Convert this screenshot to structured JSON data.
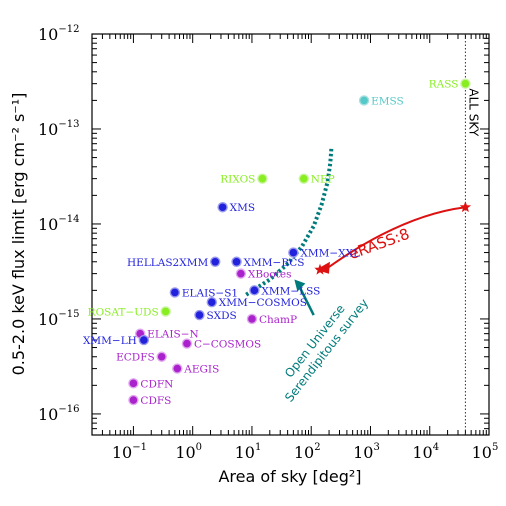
{
  "chart_data": {
    "type": "scatter",
    "xlabel": "Area of sky [deg²]",
    "ylabel": "0.5-2.0 keV flux limit [erg cm⁻² s⁻¹]",
    "x_scale": "log",
    "y_scale": "log",
    "xlim": [
      0.02,
      100000
    ],
    "ylim": [
      6e-17,
      1e-12
    ],
    "x_ticks": [
      {
        "base": "10",
        "exp": "−1"
      },
      {
        "base": "10",
        "exp": "0"
      },
      {
        "base": "10",
        "exp": "1"
      },
      {
        "base": "10",
        "exp": "2"
      },
      {
        "base": "10",
        "exp": "3"
      },
      {
        "base": "10",
        "exp": "4"
      },
      {
        "base": "10",
        "exp": "5"
      }
    ],
    "y_ticks": [
      {
        "base": "10",
        "exp": "−16"
      },
      {
        "base": "10",
        "exp": "−15"
      },
      {
        "base": "10",
        "exp": "−14"
      },
      {
        "base": "10",
        "exp": "−13"
      },
      {
        "base": "10",
        "exp": "−12"
      }
    ],
    "colors": {
      "blue": "#2222dd",
      "purple": "#aa22cc",
      "green": "#88ee22",
      "cyan": "#55c8c8",
      "red": "#dd1111",
      "teal": "#007b7b"
    },
    "points": [
      {
        "label": "RASS",
        "x": 40000,
        "y": 3e-13,
        "color": "green",
        "label_side": "left"
      },
      {
        "label": "EMSS",
        "x": 780,
        "y": 2e-13,
        "color": "cyan",
        "label_side": "right"
      },
      {
        "label": "RIXOS",
        "x": 15,
        "y": 3e-14,
        "color": "green",
        "label_side": "left"
      },
      {
        "label": "NEP",
        "x": 75,
        "y": 3e-14,
        "color": "green",
        "label_side": "right"
      },
      {
        "label": "XMS",
        "x": 3.2,
        "y": 1.5e-14,
        "color": "blue",
        "label_side": "right"
      },
      {
        "label": "HELLAS2XMM",
        "x": 2.4,
        "y": 4e-15,
        "color": "blue",
        "label_side": "left"
      },
      {
        "label": "XMM−BCS",
        "x": 5.5,
        "y": 4e-15,
        "color": "blue",
        "label_side": "right"
      },
      {
        "label": "XMM−XXL",
        "x": 50,
        "y": 5e-15,
        "color": "blue",
        "label_side": "right"
      },
      {
        "label": "XBootes",
        "x": 6.5,
        "y": 3e-15,
        "color": "purple",
        "label_side": "right"
      },
      {
        "label": "XMM−LSS",
        "x": 11,
        "y": 2e-15,
        "color": "blue",
        "label_side": "right"
      },
      {
        "label": "ELAIS−S1",
        "x": 0.5,
        "y": 1.9e-15,
        "color": "blue",
        "label_side": "right"
      },
      {
        "label": "XMM−COSMOS",
        "x": 2.1,
        "y": 1.5e-15,
        "color": "blue",
        "label_side": "right"
      },
      {
        "label": "ROSAT−UDS",
        "x": 0.35,
        "y": 1.2e-15,
        "color": "green",
        "label_side": "left"
      },
      {
        "label": "SXDS",
        "x": 1.3,
        "y": 1.1e-15,
        "color": "blue",
        "label_side": "right"
      },
      {
        "label": "ChamP",
        "x": 10,
        "y": 1e-15,
        "color": "purple",
        "label_side": "right"
      },
      {
        "label": "ELAIS−N",
        "x": 0.13,
        "y": 7e-16,
        "color": "purple",
        "label_side": "right"
      },
      {
        "label": "XMM−LH",
        "x": 0.15,
        "y": 6e-16,
        "color": "blue",
        "label_side": "left"
      },
      {
        "label": "C−COSMOS",
        "x": 0.8,
        "y": 5.5e-16,
        "color": "purple",
        "label_side": "right"
      },
      {
        "label": "ECDFS",
        "x": 0.3,
        "y": 4e-16,
        "color": "purple",
        "label_side": "left"
      },
      {
        "label": "AEGIS",
        "x": 0.55,
        "y": 3e-16,
        "color": "purple",
        "label_side": "right"
      },
      {
        "label": "CDFN",
        "x": 0.1,
        "y": 2.1e-16,
        "color": "purple",
        "label_side": "right"
      },
      {
        "label": "CDFS",
        "x": 0.1,
        "y": 1.4e-16,
        "color": "purple",
        "label_side": "right"
      }
    ],
    "open_universe_curve": {
      "x": [
        8,
        20,
        40,
        70,
        110,
        150,
        190,
        210,
        220
      ],
      "y": [
        1.8e-15,
        2.6e-15,
        3.8e-15,
        5.8e-15,
        9.5e-15,
        1.6e-14,
        2.8e-14,
        4.4e-14,
        6.5e-14
      ]
    },
    "erass8": {
      "label": "eRASS:8",
      "x1": 40000,
      "y1": 1.5e-14,
      "x2": 130,
      "y2": 3.3e-15
    },
    "all_sky": {
      "label": "ALL SKY",
      "x": 40000
    },
    "open_universe_label": [
      "Open Universe",
      "Serendipitous survey"
    ]
  }
}
